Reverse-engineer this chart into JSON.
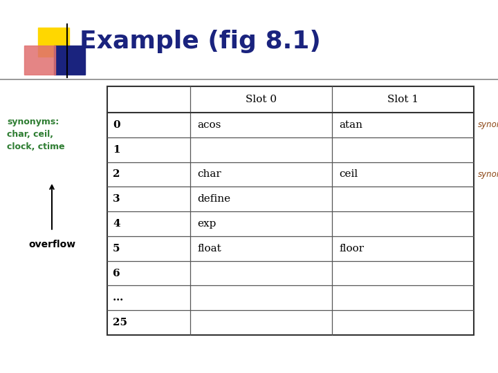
{
  "title": "Example (fig 8.1)",
  "title_color": "#1a237e",
  "title_fontsize": 26,
  "bg_color": "#ffffff",
  "col_headers": [
    "",
    "Slot 0",
    "Slot 1"
  ],
  "row_labels": [
    "0",
    "1",
    "2",
    "3",
    "4",
    "5",
    "6",
    "…",
    "25"
  ],
  "slot0_values": [
    "acos",
    "",
    "char",
    "define",
    "exp",
    "float",
    "",
    "",
    ""
  ],
  "slot1_values": [
    "atan",
    "",
    "ceil",
    "",
    "",
    "floor",
    "",
    "",
    ""
  ],
  "synonyms_label1": "synonyms",
  "synonyms_label2": "synonyms",
  "synonyms_color": "#8B4513",
  "left_label_color": "#2e7d32",
  "left_label_text1": "synonyms:",
  "left_label_text2": "char, ceil,",
  "left_label_text3": "clock, ctime",
  "overflow_text": "overflow",
  "overflow_color": "#000000",
  "icon_yellow": "#FFD700",
  "icon_blue": "#1a237e",
  "icon_pink": "#e07070",
  "line_color": "#888888",
  "border_color": "#333333",
  "table_font_size": 11
}
